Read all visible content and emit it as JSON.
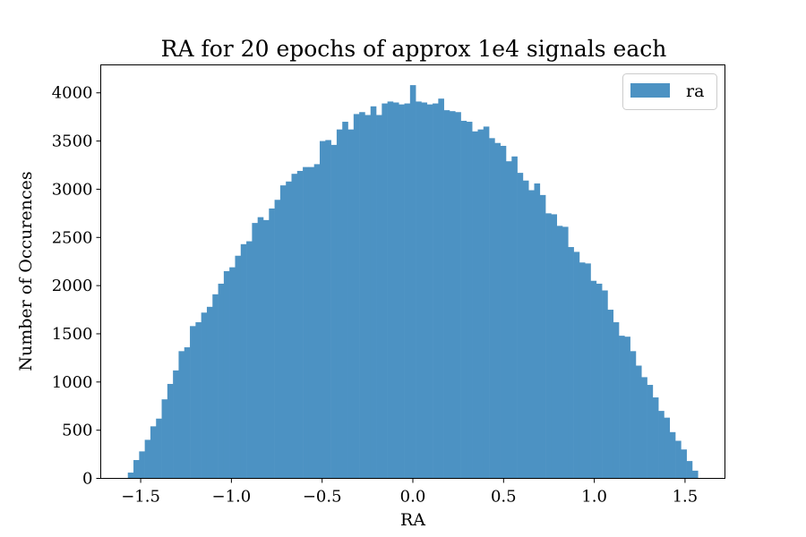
{
  "chart_data": {
    "type": "bar",
    "title": "RA for 20 epochs of approx 1e4 signals each",
    "xlabel": "RA",
    "ylabel": "Number of Occurences",
    "xlim": [
      -1.72,
      1.72
    ],
    "ylim": [
      0,
      4290
    ],
    "xticks": [
      -1.5,
      -1.0,
      -0.5,
      0.0,
      0.5,
      1.0,
      1.5
    ],
    "xtick_labels": [
      "−1.5",
      "−1.0",
      "−0.5",
      "0.0",
      "0.5",
      "1.0",
      "1.5"
    ],
    "yticks": [
      0,
      500,
      1000,
      1500,
      2000,
      2500,
      3000,
      3500,
      4000
    ],
    "ytick_labels": [
      "0",
      "500",
      "1000",
      "1500",
      "2000",
      "2500",
      "3000",
      "3500",
      "4000"
    ],
    "grid": false,
    "legend": {
      "position": "top-right",
      "entries": [
        "ra"
      ]
    },
    "bar_color": "#4c92c3",
    "bin_range": [
      -1.5708,
      1.5708
    ],
    "series": [
      {
        "name": "ra",
        "values": [
          60,
          190,
          280,
          400,
          540,
          620,
          820,
          980,
          1120,
          1320,
          1360,
          1580,
          1620,
          1720,
          1780,
          1910,
          2020,
          2150,
          2190,
          2310,
          2430,
          2460,
          2650,
          2710,
          2680,
          2800,
          2890,
          3040,
          3080,
          3160,
          3190,
          3230,
          3230,
          3260,
          3500,
          3510,
          3460,
          3620,
          3700,
          3620,
          3780,
          3800,
          3770,
          3860,
          3770,
          3890,
          3910,
          3900,
          3880,
          3890,
          4080,
          3910,
          3900,
          3880,
          3890,
          3940,
          3820,
          3810,
          3800,
          3710,
          3700,
          3600,
          3620,
          3650,
          3530,
          3480,
          3450,
          3290,
          3340,
          3170,
          3090,
          2990,
          3060,
          2940,
          2750,
          2740,
          2620,
          2610,
          2400,
          2350,
          2240,
          2230,
          2050,
          2020,
          1950,
          1750,
          1620,
          1480,
          1470,
          1320,
          1170,
          1050,
          970,
          840,
          700,
          630,
          480,
          390,
          300,
          180,
          80
        ]
      }
    ]
  }
}
